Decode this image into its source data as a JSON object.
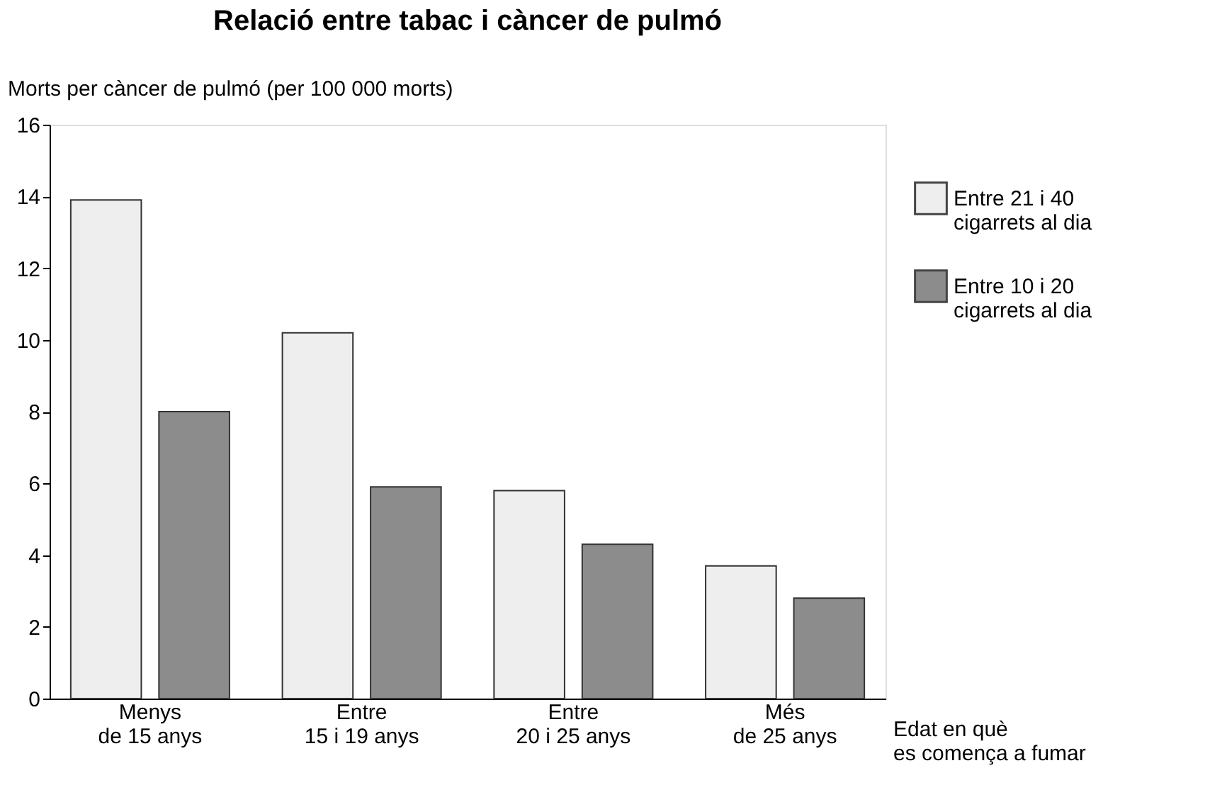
{
  "chart_data": {
    "type": "bar",
    "title": "Relació entre tabac i càncer de pulmó",
    "ylabel": "Morts per càncer de pulmó (per 100 000 morts)",
    "xlabel": "Edat en què\nes comença a fumar",
    "categories": [
      "Menys\nde 15 anys",
      "Entre\n15 i 19 anys",
      "Entre\n20 i 25 anys",
      "Més\nde 25 anys"
    ],
    "series": [
      {
        "name": "Entre 21 i 40\ncigarrets al dia",
        "color": "#eeeeee",
        "values": [
          13.9,
          10.2,
          5.8,
          3.7
        ]
      },
      {
        "name": "Entre 10 i 20\ncigarrets al dia",
        "color": "#8c8c8c",
        "values": [
          8.0,
          5.9,
          4.3,
          2.8
        ]
      }
    ],
    "ylim": [
      0,
      16
    ],
    "yticks": [
      0,
      2,
      4,
      6,
      8,
      10,
      12,
      14,
      16
    ],
    "grid": false,
    "legend": "top right"
  }
}
